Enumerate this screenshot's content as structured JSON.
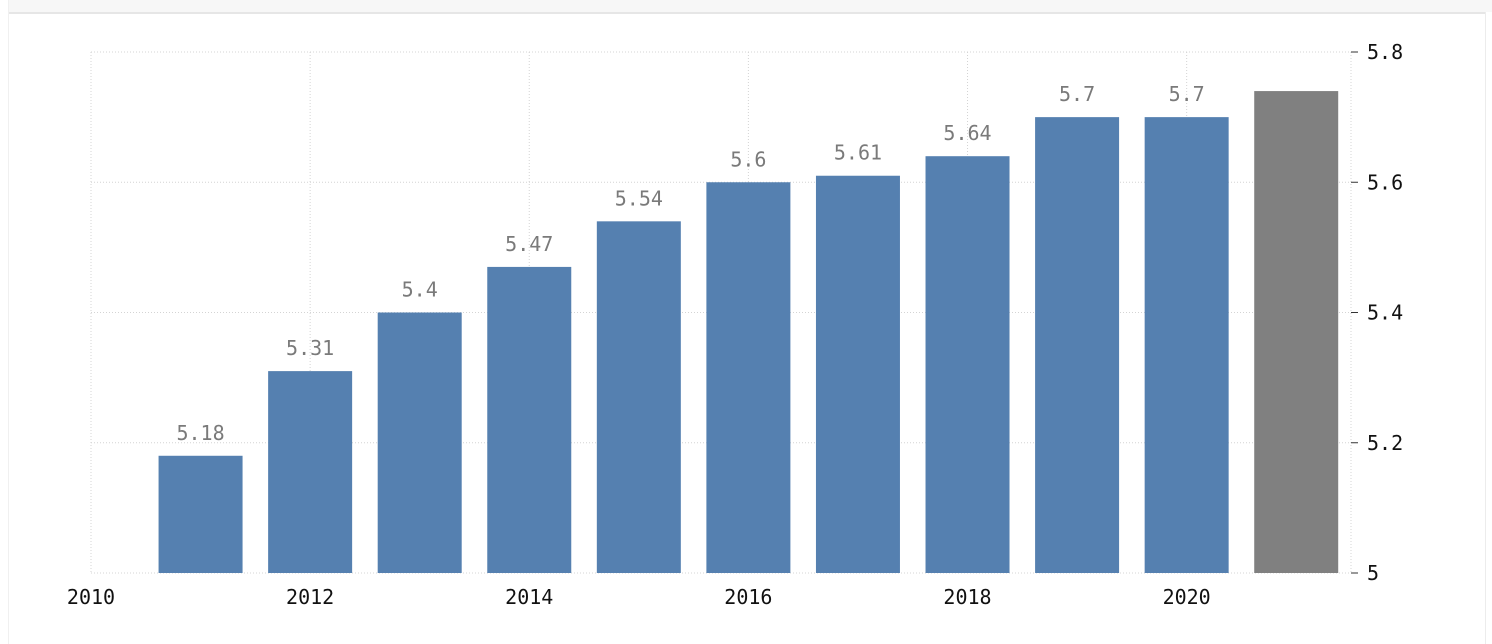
{
  "chart_data": {
    "type": "bar",
    "title": "",
    "xlabel": "",
    "ylabel": "",
    "x": [
      2011,
      2012,
      2013,
      2014,
      2015,
      2016,
      2017,
      2018,
      2019,
      2020,
      2021
    ],
    "values": [
      5.18,
      5.31,
      5.4,
      5.47,
      5.54,
      5.6,
      5.61,
      5.64,
      5.7,
      5.7,
      5.74
    ],
    "data_labels": [
      "5.18",
      "5.31",
      "5.4",
      "5.47",
      "5.54",
      "5.6",
      "5.61",
      "5.64",
      "5.7",
      "5.7",
      ""
    ],
    "bar_colors": [
      "#5580b0",
      "#5580b0",
      "#5580b0",
      "#5580b0",
      "#5580b0",
      "#5580b0",
      "#5580b0",
      "#5580b0",
      "#5580b0",
      "#5580b0",
      "#808080"
    ],
    "xlim": [
      2010,
      2021.5
    ],
    "ylim": [
      5,
      5.8
    ],
    "x_ticks": [
      "2010",
      "2012",
      "2014",
      "2016",
      "2018",
      "2020"
    ],
    "y_ticks": [
      "5",
      "5.2",
      "5.4",
      "5.6",
      "5.8"
    ],
    "y_axis_position": "right",
    "grid": true,
    "grid_color": "#d4d4d4",
    "legend": "none"
  }
}
